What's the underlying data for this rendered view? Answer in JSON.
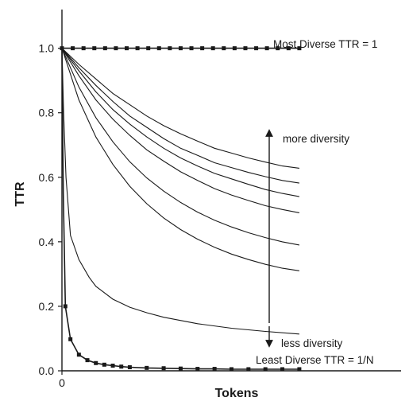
{
  "chart_data": {
    "type": "line",
    "title": "",
    "xlabel": "Tokens",
    "ylabel": "TTR",
    "x_tick_labels": [
      {
        "value": 0,
        "label": "0"
      }
    ],
    "y_tick_labels": [
      {
        "value": 0.0,
        "label": "0.0"
      },
      {
        "value": 0.2,
        "label": "0.2"
      },
      {
        "value": 0.4,
        "label": "0.4"
      },
      {
        "value": 0.6,
        "label": "0.6"
      },
      {
        "value": 0.8,
        "label": "0.8"
      },
      {
        "value": 1.0,
        "label": "1.0"
      }
    ],
    "xlim": [
      0,
      1
    ],
    "ylim": [
      0,
      1.12
    ],
    "grid": false,
    "legend": "none",
    "line_color": "#1a1a1a",
    "series": [
      {
        "values": [
          [
            0,
            1
          ],
          [
            0.05,
            0.95
          ],
          [
            0.1,
            0.905
          ],
          [
            0.15,
            0.86
          ],
          [
            0.2,
            0.825
          ],
          [
            0.25,
            0.79
          ],
          [
            0.3,
            0.76
          ],
          [
            0.35,
            0.735
          ],
          [
            0.4,
            0.712
          ],
          [
            0.45,
            0.69
          ],
          [
            0.5,
            0.675
          ],
          [
            0.55,
            0.66
          ],
          [
            0.6,
            0.647
          ],
          [
            0.65,
            0.635
          ],
          [
            0.7,
            0.628
          ]
        ]
      },
      {
        "values": [
          [
            0,
            1
          ],
          [
            0.05,
            0.94
          ],
          [
            0.1,
            0.885
          ],
          [
            0.15,
            0.835
          ],
          [
            0.2,
            0.79
          ],
          [
            0.25,
            0.755
          ],
          [
            0.3,
            0.72
          ],
          [
            0.35,
            0.69
          ],
          [
            0.4,
            0.668
          ],
          [
            0.45,
            0.645
          ],
          [
            0.5,
            0.63
          ],
          [
            0.55,
            0.615
          ],
          [
            0.6,
            0.602
          ],
          [
            0.65,
            0.59
          ],
          [
            0.7,
            0.582
          ]
        ]
      },
      {
        "values": [
          [
            0,
            1
          ],
          [
            0.05,
            0.93
          ],
          [
            0.1,
            0.865
          ],
          [
            0.15,
            0.81
          ],
          [
            0.2,
            0.765
          ],
          [
            0.25,
            0.725
          ],
          [
            0.3,
            0.69
          ],
          [
            0.35,
            0.66
          ],
          [
            0.4,
            0.635
          ],
          [
            0.45,
            0.612
          ],
          [
            0.5,
            0.595
          ],
          [
            0.55,
            0.578
          ],
          [
            0.6,
            0.562
          ],
          [
            0.65,
            0.55
          ],
          [
            0.7,
            0.54
          ]
        ]
      },
      {
        "values": [
          [
            0,
            1
          ],
          [
            0.05,
            0.915
          ],
          [
            0.1,
            0.84
          ],
          [
            0.15,
            0.78
          ],
          [
            0.2,
            0.73
          ],
          [
            0.25,
            0.685
          ],
          [
            0.3,
            0.65
          ],
          [
            0.35,
            0.617
          ],
          [
            0.4,
            0.59
          ],
          [
            0.45,
            0.565
          ],
          [
            0.5,
            0.545
          ],
          [
            0.55,
            0.528
          ],
          [
            0.6,
            0.512
          ],
          [
            0.65,
            0.5
          ],
          [
            0.7,
            0.49
          ]
        ]
      },
      {
        "values": [
          [
            0,
            1
          ],
          [
            0.05,
            0.88
          ],
          [
            0.1,
            0.785
          ],
          [
            0.15,
            0.71
          ],
          [
            0.2,
            0.648
          ],
          [
            0.25,
            0.598
          ],
          [
            0.3,
            0.557
          ],
          [
            0.35,
            0.522
          ],
          [
            0.4,
            0.492
          ],
          [
            0.45,
            0.467
          ],
          [
            0.5,
            0.446
          ],
          [
            0.55,
            0.428
          ],
          [
            0.6,
            0.413
          ],
          [
            0.65,
            0.4
          ],
          [
            0.7,
            0.39
          ]
        ]
      },
      {
        "values": [
          [
            0,
            1
          ],
          [
            0.05,
            0.84
          ],
          [
            0.1,
            0.725
          ],
          [
            0.15,
            0.64
          ],
          [
            0.2,
            0.572
          ],
          [
            0.25,
            0.518
          ],
          [
            0.3,
            0.474
          ],
          [
            0.35,
            0.438
          ],
          [
            0.4,
            0.408
          ],
          [
            0.45,
            0.383
          ],
          [
            0.5,
            0.362
          ],
          [
            0.55,
            0.345
          ],
          [
            0.6,
            0.33
          ],
          [
            0.65,
            0.318
          ],
          [
            0.7,
            0.31
          ]
        ]
      },
      {
        "values": [
          [
            0,
            1
          ],
          [
            0.005,
            0.8
          ],
          [
            0.012,
            0.6
          ],
          [
            0.025,
            0.42
          ],
          [
            0.05,
            0.345
          ],
          [
            0.08,
            0.29
          ],
          [
            0.1,
            0.262
          ],
          [
            0.15,
            0.222
          ],
          [
            0.2,
            0.197
          ],
          [
            0.25,
            0.18
          ],
          [
            0.3,
            0.166
          ],
          [
            0.4,
            0.146
          ],
          [
            0.5,
            0.132
          ],
          [
            0.6,
            0.122
          ],
          [
            0.7,
            0.114
          ]
        ]
      },
      {
        "values": [
          [
            0,
            1
          ],
          [
            0.004,
            0.55
          ],
          [
            0.01,
            0.2
          ],
          [
            0.025,
            0.098
          ],
          [
            0.05,
            0.05
          ],
          [
            0.075,
            0.033
          ],
          [
            0.1,
            0.024
          ],
          [
            0.125,
            0.019
          ],
          [
            0.15,
            0.016
          ],
          [
            0.175,
            0.013
          ],
          [
            0.2,
            0.011
          ],
          [
            0.25,
            0.009
          ],
          [
            0.3,
            0.008
          ],
          [
            0.35,
            0.007
          ],
          [
            0.4,
            0.006
          ],
          [
            0.45,
            0.006
          ],
          [
            0.5,
            0.005
          ],
          [
            0.55,
            0.005
          ],
          [
            0.6,
            0.005
          ],
          [
            0.65,
            0.005
          ],
          [
            0.7,
            0.005
          ]
        ]
      },
      {
        "values": [
          [
            0,
            1
          ],
          [
            0.7,
            1
          ]
        ]
      }
    ],
    "annotations": {
      "most_diverse": "Most Diverse TTR = 1",
      "more_diversity": "more diversity",
      "less_diversity": "less diversity",
      "least_diverse": "Least Diverse TTR = 1/N"
    }
  }
}
